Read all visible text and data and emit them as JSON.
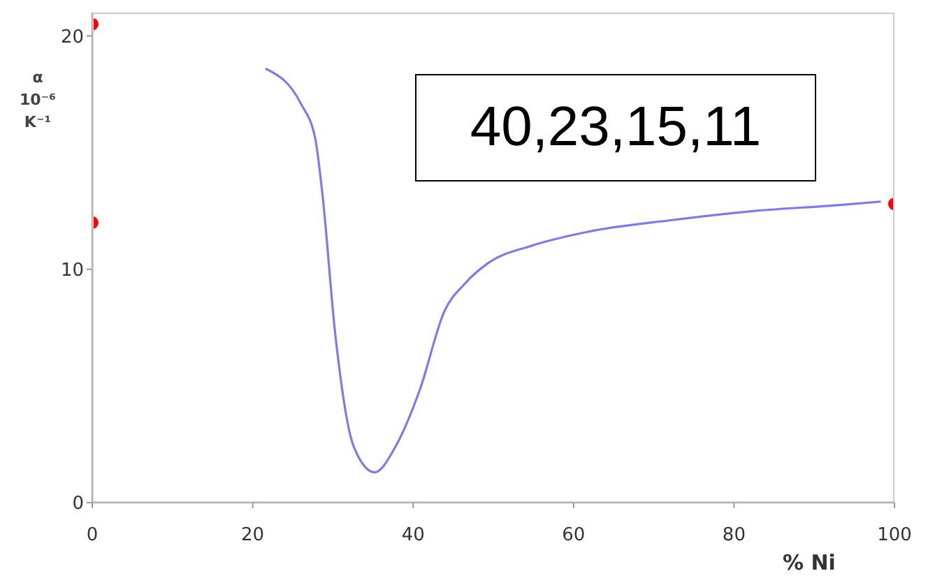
{
  "chart_data": {
    "type": "line",
    "ylabel": "α 10⁻⁶ K⁻¹",
    "xlabel": "% Ni",
    "xlim": [
      0,
      100
    ],
    "xticks": [
      0,
      20,
      40,
      60,
      80,
      100
    ],
    "ylim": [
      0,
      21
    ],
    "yticks": [
      0,
      10,
      20
    ],
    "annotations": [
      "40,23,15,11"
    ],
    "series": [
      {
        "color": "#7b7bf0",
        "marker": "none",
        "x": [
          21.6,
          26,
          27.8,
          28.7,
          30.3,
          32.6,
          35.2,
          37.8,
          40.8,
          43.9,
          46.5,
          49.5,
          54.7,
          61.7,
          72.1,
          82.6,
          93,
          98.3
        ],
        "values": [
          18.6,
          17.1,
          15.6,
          13.2,
          7.2,
          2.4,
          1.3,
          2.4,
          4.8,
          8.2,
          9.4,
          10.3,
          11,
          11.6,
          12.1,
          12.5,
          12.75,
          12.9
        ]
      },
      {
        "type": "scatter",
        "color": "#ff0000",
        "marker": "circle",
        "x": [
          0,
          0,
          100
        ],
        "values": [
          20.5,
          12,
          12.8
        ]
      }
    ]
  }
}
